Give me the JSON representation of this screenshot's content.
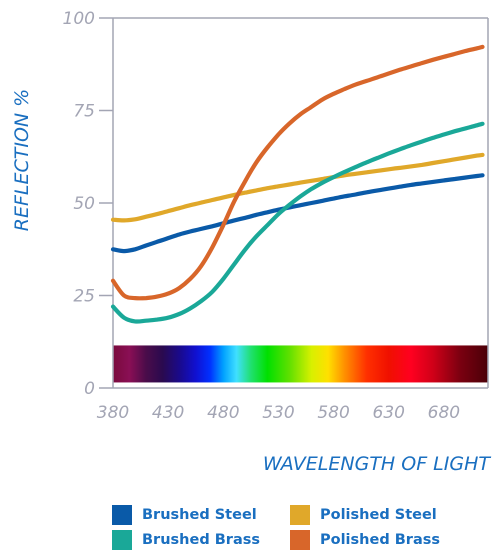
{
  "chart_data": {
    "type": "line",
    "title": "",
    "xlabel": "WAVELENGTH OF LIGHT",
    "ylabel": "REFLECTION %",
    "xlim": [
      380,
      720
    ],
    "ylim": [
      0,
      100
    ],
    "x_ticks": [
      380,
      430,
      480,
      530,
      580,
      630,
      680
    ],
    "y_ticks": [
      0,
      25,
      50,
      75,
      100
    ],
    "grid": false,
    "legend_position": "bottom",
    "spectrum_band": {
      "ymin": 1.5,
      "ymax": 11.5,
      "stops": [
        {
          "nm": 380,
          "color": "#7a0a3c"
        },
        {
          "nm": 395,
          "color": "#8a0f55"
        },
        {
          "nm": 410,
          "color": "#4a0c4a"
        },
        {
          "nm": 425,
          "color": "#2a0a4f"
        },
        {
          "nm": 440,
          "color": "#1a0a8a"
        },
        {
          "nm": 455,
          "color": "#1010d0"
        },
        {
          "nm": 468,
          "color": "#0030ff"
        },
        {
          "nm": 480,
          "color": "#00a0ff"
        },
        {
          "nm": 492,
          "color": "#40e0ff"
        },
        {
          "nm": 505,
          "color": "#20e070"
        },
        {
          "nm": 520,
          "color": "#00e000"
        },
        {
          "nm": 540,
          "color": "#60e000"
        },
        {
          "nm": 560,
          "color": "#d8f000"
        },
        {
          "nm": 575,
          "color": "#ffe000"
        },
        {
          "nm": 590,
          "color": "#ff9000"
        },
        {
          "nm": 610,
          "color": "#ff3000"
        },
        {
          "nm": 630,
          "color": "#f01000"
        },
        {
          "nm": 650,
          "color": "#ff0020"
        },
        {
          "nm": 670,
          "color": "#d00018"
        },
        {
          "nm": 695,
          "color": "#7a0010"
        },
        {
          "nm": 720,
          "color": "#4a0008"
        }
      ]
    },
    "x": [
      380,
      390,
      400,
      410,
      420,
      430,
      440,
      450,
      460,
      470,
      480,
      490,
      500,
      510,
      520,
      530,
      540,
      550,
      560,
      570,
      580,
      590,
      600,
      610,
      620,
      630,
      640,
      650,
      660,
      670,
      680,
      690,
      700,
      710,
      715
    ],
    "series": [
      {
        "name": "Brushed Steel",
        "color": "#0a5aa8",
        "values": [
          37.5,
          37,
          37.5,
          38.5,
          39.5,
          40.5,
          41.5,
          42.3,
          43,
          43.7,
          44.5,
          45.3,
          46,
          46.8,
          47.5,
          48.2,
          48.8,
          49.4,
          50,
          50.6,
          51.2,
          51.8,
          52.3,
          52.9,
          53.4,
          53.9,
          54.4,
          54.9,
          55.3,
          55.7,
          56.1,
          56.5,
          56.9,
          57.3,
          57.5
        ]
      },
      {
        "name": "Polished Steel",
        "color": "#e0a82a",
        "values": [
          45.5,
          45.3,
          45.6,
          46.3,
          47,
          47.8,
          48.6,
          49.4,
          50.1,
          50.8,
          51.5,
          52.2,
          52.8,
          53.4,
          54,
          54.5,
          55,
          55.5,
          56,
          56.5,
          57,
          57.5,
          57.9,
          58.3,
          58.7,
          59.1,
          59.5,
          59.9,
          60.3,
          60.8,
          61.3,
          61.8,
          62.3,
          62.8,
          63
        ]
      },
      {
        "name": "Brushed Brass",
        "color": "#1aa898",
        "values": [
          22,
          19,
          18,
          18.2,
          18.5,
          19,
          20,
          21.5,
          23.5,
          26,
          29.5,
          33.5,
          37.5,
          41,
          44,
          47,
          49.5,
          51.8,
          53.8,
          55.5,
          57,
          58.4,
          59.7,
          61,
          62.2,
          63.4,
          64.5,
          65.6,
          66.6,
          67.6,
          68.5,
          69.4,
          70.2,
          71,
          71.4
        ]
      },
      {
        "name": "Polished Brass",
        "color": "#d8662a",
        "values": [
          29,
          25,
          24.3,
          24.3,
          24.7,
          25.5,
          27,
          29.5,
          33,
          38,
          44,
          50.5,
          56,
          61,
          65,
          68.5,
          71.5,
          74,
          76,
          78,
          79.5,
          80.8,
          82,
          83,
          84,
          85,
          86,
          86.9,
          87.8,
          88.7,
          89.5,
          90.3,
          91.1,
          91.8,
          92.2
        ]
      }
    ]
  }
}
